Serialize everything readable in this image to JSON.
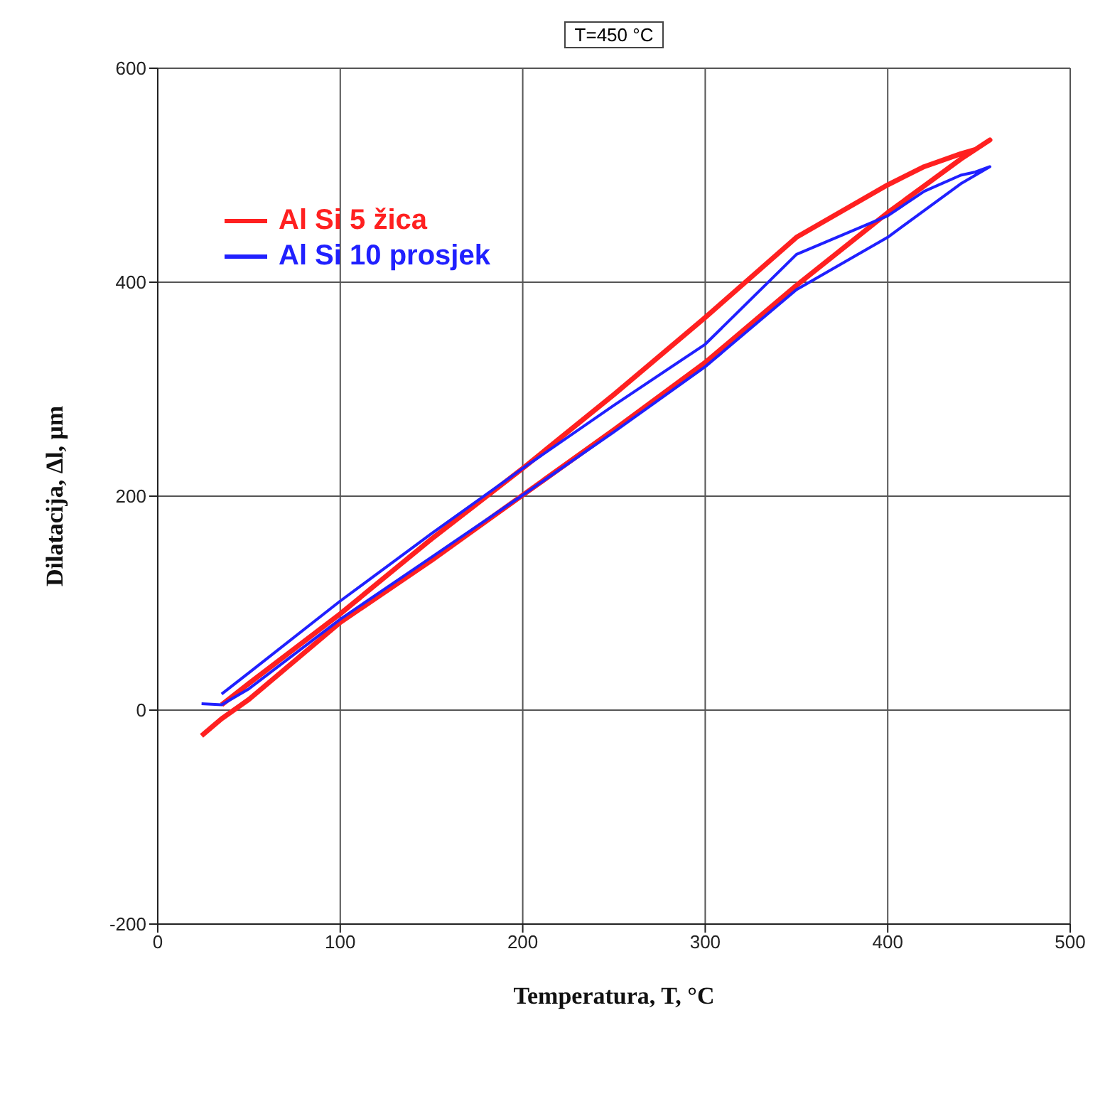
{
  "chart_data": {
    "type": "line",
    "title": "T=450 °C",
    "xlabel": "Temperatura, T, °C",
    "ylabel": "Dilatacija, Δl,  μm",
    "xlim": [
      0,
      500
    ],
    "xticks": [
      0,
      100,
      200,
      300,
      400,
      500
    ],
    "ylim": [
      -200,
      600
    ],
    "yticks": [
      -200,
      0,
      200,
      400,
      600
    ],
    "grid": true,
    "legend": "top left",
    "marker": "none",
    "line_style": "solid",
    "x": [
      24,
      35,
      50,
      100,
      150,
      200,
      250,
      300,
      350,
      400,
      440,
      456,
      448,
      440,
      420,
      400,
      350,
      300,
      250,
      200,
      150,
      100,
      50,
      35
    ],
    "series": [
      {
        "name": "Al Si 5 žica",
        "color": "#ff2020",
        "values": [
          -24,
          -8,
          10,
          82,
          140,
          201,
          262,
          325,
          397,
          465,
          515,
          533,
          524,
          520,
          508,
          491,
          442,
          367,
          295,
          226,
          160,
          90,
          25,
          5
        ]
      },
      {
        "name": "Al Si 10 prosjek",
        "color": "#2020ff",
        "values": [
          6,
          5,
          20,
          85,
          143,
          201,
          260,
          321,
          393,
          442,
          492,
          508,
          503,
          500,
          485,
          462,
          426,
          342,
          285,
          226,
          165,
          102,
          35,
          15
        ]
      }
    ]
  }
}
